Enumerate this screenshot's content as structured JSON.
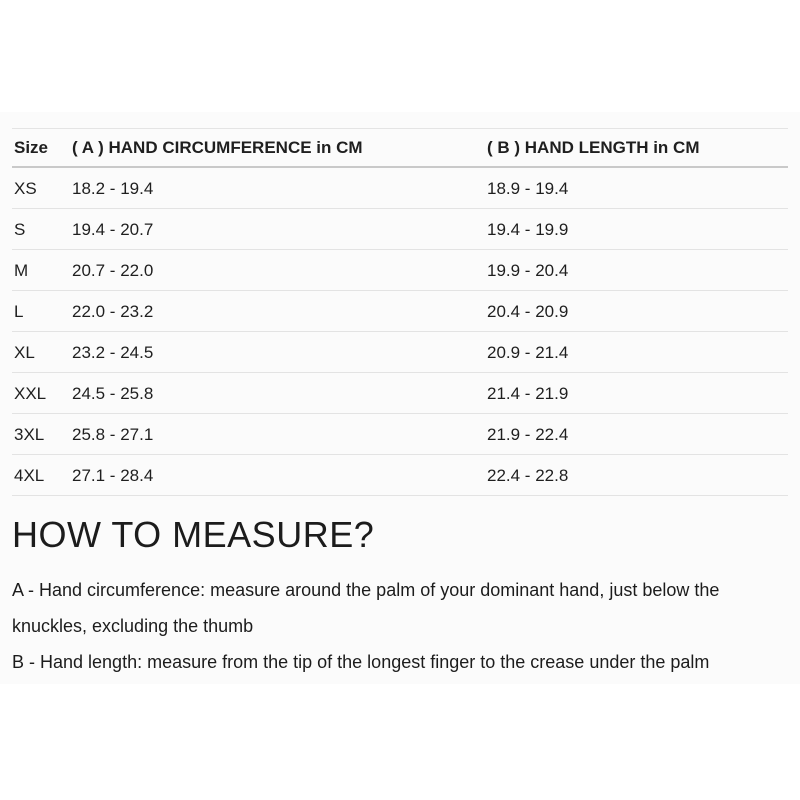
{
  "size_chart": {
    "columns": {
      "size": "Size",
      "circumference": "( A ) HAND CIRCUMFERENCE in CM",
      "length": "( B ) HAND LENGTH in CM"
    },
    "rows": [
      {
        "size": "XS",
        "circumference": "18.2 - 19.4",
        "length": "18.9 - 19.4"
      },
      {
        "size": "S",
        "circumference": "19.4 - 20.7",
        "length": "19.4 - 19.9"
      },
      {
        "size": "M",
        "circumference": "20.7 - 22.0",
        "length": "19.9 - 20.4"
      },
      {
        "size": "L",
        "circumference": "22.0 - 23.2",
        "length": "20.4 - 20.9"
      },
      {
        "size": "XL",
        "circumference": "23.2 - 24.5",
        "length": "20.9 - 21.4"
      },
      {
        "size": "XXL",
        "circumference": "24.5 - 25.8",
        "length": "21.4 - 21.9"
      },
      {
        "size": "3XL",
        "circumference": "25.8 - 27.1",
        "length": "21.9 - 22.4"
      },
      {
        "size": "4XL",
        "circumference": "27.1 - 28.4",
        "length": "22.4 - 22.8"
      }
    ]
  },
  "how_to_measure": {
    "heading": "HOW TO MEASURE?",
    "instruction_a": "A - Hand circumference: measure around the palm of your dominant hand, just below the knuckles, excluding the thumb",
    "instruction_b": "B - Hand length: measure from the tip of the longest finger to the crease under the palm"
  },
  "colors": {
    "text": "#1c1c1c",
    "panel_background": "#fbfbfb",
    "row_divider": "#e3e3e3",
    "header_underline": "#c9c9c9"
  }
}
